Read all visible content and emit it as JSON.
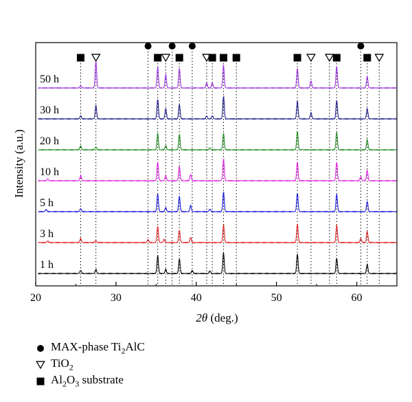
{
  "chart_data": {
    "type": "line",
    "xlabel": "2θ (deg.)",
    "ylabel": "Intensity (a.u.)",
    "xlim": [
      20,
      65
    ],
    "xticks": [
      "20",
      "30",
      "40",
      "50",
      "60"
    ],
    "series": [
      {
        "name": "1 h",
        "color": "#000000",
        "peaks": [
          [
            25.6,
            0.15
          ],
          [
            27.5,
            0.2
          ],
          [
            35.2,
            0.85
          ],
          [
            36.2,
            0.2
          ],
          [
            37.9,
            0.7
          ],
          [
            39.5,
            0.15
          ],
          [
            41.7,
            0.12
          ],
          [
            43.4,
            1.0
          ],
          [
            52.6,
            0.95
          ],
          [
            57.5,
            0.75
          ],
          [
            61.3,
            0.45
          ]
        ]
      },
      {
        "name": "3 h",
        "color": "#e02020",
        "peaks": [
          [
            21.5,
            0.08
          ],
          [
            25.6,
            0.2
          ],
          [
            27.5,
            0.1
          ],
          [
            34.0,
            0.15
          ],
          [
            35.2,
            0.8
          ],
          [
            36.0,
            0.15
          ],
          [
            37.9,
            0.6
          ],
          [
            39.3,
            0.25
          ],
          [
            43.4,
            0.85
          ],
          [
            52.6,
            0.9
          ],
          [
            57.5,
            0.85
          ],
          [
            60.5,
            0.2
          ],
          [
            61.3,
            0.55
          ]
        ]
      },
      {
        "name": "5 h",
        "color": "#1a1ae0",
        "peaks": [
          [
            21.3,
            0.1
          ],
          [
            25.6,
            0.15
          ],
          [
            35.2,
            0.85
          ],
          [
            36.2,
            0.2
          ],
          [
            37.9,
            0.75
          ],
          [
            39.3,
            0.3
          ],
          [
            41.7,
            0.12
          ],
          [
            43.4,
            0.95
          ],
          [
            52.6,
            0.9
          ],
          [
            57.5,
            0.85
          ],
          [
            61.3,
            0.5
          ]
        ]
      },
      {
        "name": "10 h",
        "color": "#e020e0",
        "peaks": [
          [
            21.5,
            0.08
          ],
          [
            25.6,
            0.25
          ],
          [
            35.2,
            0.9
          ],
          [
            36.2,
            0.25
          ],
          [
            37.9,
            0.7
          ],
          [
            39.3,
            0.3
          ],
          [
            43.4,
            1.05
          ],
          [
            52.6,
            0.9
          ],
          [
            57.5,
            0.9
          ],
          [
            60.5,
            0.2
          ],
          [
            61.3,
            0.5
          ]
        ]
      },
      {
        "name": "20 h",
        "color": "#1a8a1a",
        "peaks": [
          [
            25.6,
            0.2
          ],
          [
            27.5,
            0.15
          ],
          [
            35.2,
            0.8
          ],
          [
            36.2,
            0.2
          ],
          [
            37.9,
            0.75
          ],
          [
            41.7,
            0.1
          ],
          [
            43.4,
            0.8
          ],
          [
            52.6,
            0.9
          ],
          [
            57.5,
            0.85
          ],
          [
            61.3,
            0.5
          ]
        ]
      },
      {
        "name": "30 h",
        "color": "#1a1a8a",
        "peaks": [
          [
            25.6,
            0.15
          ],
          [
            27.5,
            0.65
          ],
          [
            35.2,
            0.95
          ],
          [
            36.2,
            0.5
          ],
          [
            37.9,
            0.7
          ],
          [
            41.3,
            0.15
          ],
          [
            42.0,
            0.15
          ],
          [
            43.4,
            1.1
          ],
          [
            52.6,
            0.85
          ],
          [
            54.3,
            0.3
          ],
          [
            57.5,
            0.9
          ],
          [
            61.3,
            0.5
          ]
        ]
      },
      {
        "name": "50 h",
        "color": "#9a30e0",
        "peaks": [
          [
            25.6,
            0.1
          ],
          [
            27.5,
            1.3
          ],
          [
            35.2,
            1.0
          ],
          [
            36.2,
            0.65
          ],
          [
            37.9,
            0.95
          ],
          [
            41.3,
            0.25
          ],
          [
            42.0,
            0.25
          ],
          [
            43.4,
            1.1
          ],
          [
            52.6,
            0.95
          ],
          [
            54.3,
            0.35
          ],
          [
            57.5,
            1.05
          ],
          [
            61.3,
            0.55
          ]
        ]
      }
    ],
    "reference_lines": [
      {
        "x": 25.6,
        "marker": "square"
      },
      {
        "x": 27.5,
        "marker": "triangle"
      },
      {
        "x": 34.0,
        "marker": "circle"
      },
      {
        "x": 35.2,
        "marker": "square"
      },
      {
        "x": 36.2,
        "marker": "triangle"
      },
      {
        "x": 37.0,
        "marker": "circle"
      },
      {
        "x": 37.9,
        "marker": "square"
      },
      {
        "x": 39.5,
        "marker": "circle"
      },
      {
        "x": 41.3,
        "marker": "triangle"
      },
      {
        "x": 42.0,
        "marker": "square"
      },
      {
        "x": 43.4,
        "marker": "square"
      },
      {
        "x": 45.0,
        "marker": "square"
      },
      {
        "x": 52.6,
        "marker": "square"
      },
      {
        "x": 54.3,
        "marker": "triangle"
      },
      {
        "x": 56.6,
        "marker": "triangle"
      },
      {
        "x": 57.5,
        "marker": "square"
      },
      {
        "x": 60.5,
        "marker": "circle"
      },
      {
        "x": 61.3,
        "marker": "square"
      },
      {
        "x": 62.8,
        "marker": "triangle"
      }
    ],
    "legend": [
      {
        "marker": "circle",
        "text_before": "MAX-phase Ti",
        "sub1": "2",
        "text_after": "AlC",
        "sub2": "",
        "text_end": ""
      },
      {
        "marker": "triangle",
        "text_before": "TiO",
        "sub1": "2",
        "text_after": "",
        "sub2": "",
        "text_end": ""
      },
      {
        "marker": "square",
        "text_before": "Al",
        "sub1": "2",
        "text_after": "O",
        "sub2": "3",
        "text_end": " substrate"
      }
    ],
    "legend_placement": "bottom-left",
    "grid": false
  }
}
